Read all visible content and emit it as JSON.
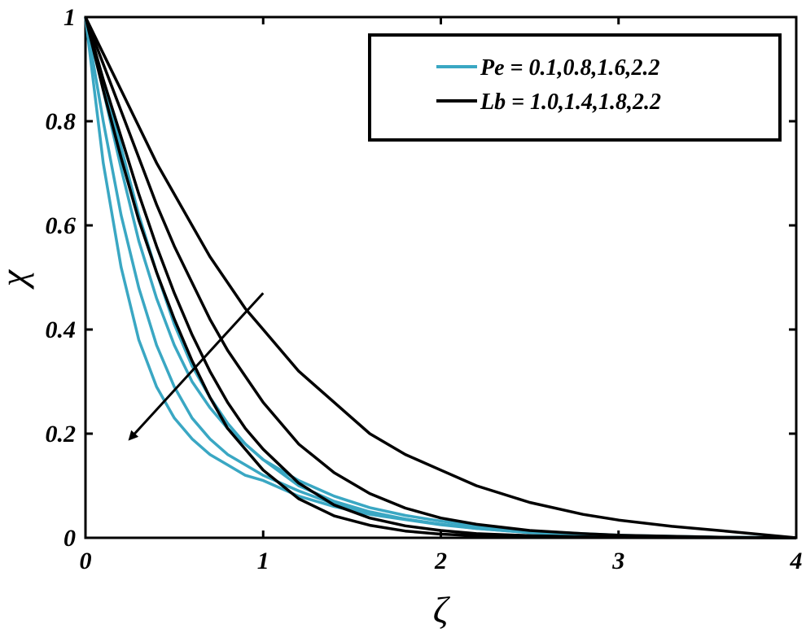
{
  "chart_data": {
    "type": "line",
    "title": "",
    "xlabel": "ζ",
    "ylabel": "χ",
    "xlim": [
      0,
      4
    ],
    "ylim": [
      0,
      1
    ],
    "x_ticks": [
      "0",
      "1",
      "2",
      "3",
      "4"
    ],
    "y_ticks": [
      "0",
      "0.2",
      "0.4",
      "0.6",
      "0.8",
      "1"
    ],
    "legend_position": "top-right",
    "legend": [
      {
        "label": "Pe = 0.1,0.8,1.6,2.2",
        "color": "#3aa7c3"
      },
      {
        "label": "Lb = 1.0,1.4,1.8,2.2",
        "color": "#000000"
      }
    ],
    "arrow": {
      "from": [
        1.0,
        0.47
      ],
      "to": [
        0.25,
        0.19
      ]
    },
    "x": [
      0,
      0.1,
      0.2,
      0.3,
      0.4,
      0.5,
      0.6,
      0.7,
      0.8,
      0.9,
      1.0,
      1.2,
      1.4,
      1.6,
      1.8,
      2.0,
      2.2,
      2.5,
      2.8,
      3.0,
      3.3,
      3.6,
      4.0
    ],
    "series": [
      {
        "group": "Pe",
        "color": "#3aa7c3",
        "values": [
          1.0,
          0.72,
          0.52,
          0.38,
          0.29,
          0.23,
          0.19,
          0.16,
          0.14,
          0.12,
          0.11,
          0.08,
          0.06,
          0.045,
          0.035,
          0.025,
          0.018,
          0.01,
          0.006,
          0.004,
          0.002,
          0.001,
          0.0
        ]
      },
      {
        "group": "Pe",
        "color": "#3aa7c3",
        "values": [
          1.0,
          0.8,
          0.62,
          0.48,
          0.37,
          0.29,
          0.23,
          0.19,
          0.16,
          0.14,
          0.12,
          0.09,
          0.065,
          0.048,
          0.036,
          0.026,
          0.018,
          0.01,
          0.006,
          0.004,
          0.002,
          0.001,
          0.0
        ]
      },
      {
        "group": "Pe",
        "color": "#3aa7c3",
        "values": [
          1.0,
          0.86,
          0.71,
          0.57,
          0.46,
          0.37,
          0.3,
          0.25,
          0.21,
          0.18,
          0.15,
          0.11,
          0.08,
          0.058,
          0.043,
          0.032,
          0.023,
          0.013,
          0.008,
          0.005,
          0.003,
          0.001,
          0.0
        ]
      },
      {
        "group": "Pe",
        "color": "#3aa7c3",
        "values": [
          1.0,
          0.88,
          0.75,
          0.62,
          0.51,
          0.41,
          0.33,
          0.27,
          0.22,
          0.18,
          0.15,
          0.1,
          0.07,
          0.05,
          0.036,
          0.026,
          0.019,
          0.011,
          0.006,
          0.004,
          0.002,
          0.001,
          0.0
        ]
      },
      {
        "group": "Lb",
        "color": "#000000",
        "values": [
          1.0,
          0.86,
          0.73,
          0.61,
          0.51,
          0.42,
          0.34,
          0.27,
          0.21,
          0.17,
          0.13,
          0.075,
          0.042,
          0.024,
          0.013,
          0.007,
          0.004,
          0.002,
          0.001,
          0.0005,
          0.0002,
          0.0001,
          0.0
        ]
      },
      {
        "group": "Lb",
        "color": "#000000",
        "values": [
          1.0,
          0.88,
          0.77,
          0.66,
          0.56,
          0.47,
          0.39,
          0.32,
          0.26,
          0.21,
          0.17,
          0.105,
          0.063,
          0.038,
          0.023,
          0.014,
          0.008,
          0.004,
          0.002,
          0.001,
          0.0005,
          0.0002,
          0.0
        ]
      },
      {
        "group": "Lb",
        "color": "#000000",
        "values": [
          1.0,
          0.91,
          0.82,
          0.73,
          0.64,
          0.56,
          0.49,
          0.42,
          0.36,
          0.31,
          0.26,
          0.18,
          0.125,
          0.085,
          0.057,
          0.038,
          0.026,
          0.014,
          0.008,
          0.005,
          0.003,
          0.001,
          0.0
        ]
      },
      {
        "group": "Lb",
        "color": "#000000",
        "values": [
          1.0,
          0.93,
          0.86,
          0.79,
          0.72,
          0.66,
          0.6,
          0.54,
          0.49,
          0.44,
          0.4,
          0.32,
          0.26,
          0.2,
          0.16,
          0.13,
          0.1,
          0.068,
          0.045,
          0.034,
          0.022,
          0.013,
          0.0
        ]
      }
    ]
  }
}
